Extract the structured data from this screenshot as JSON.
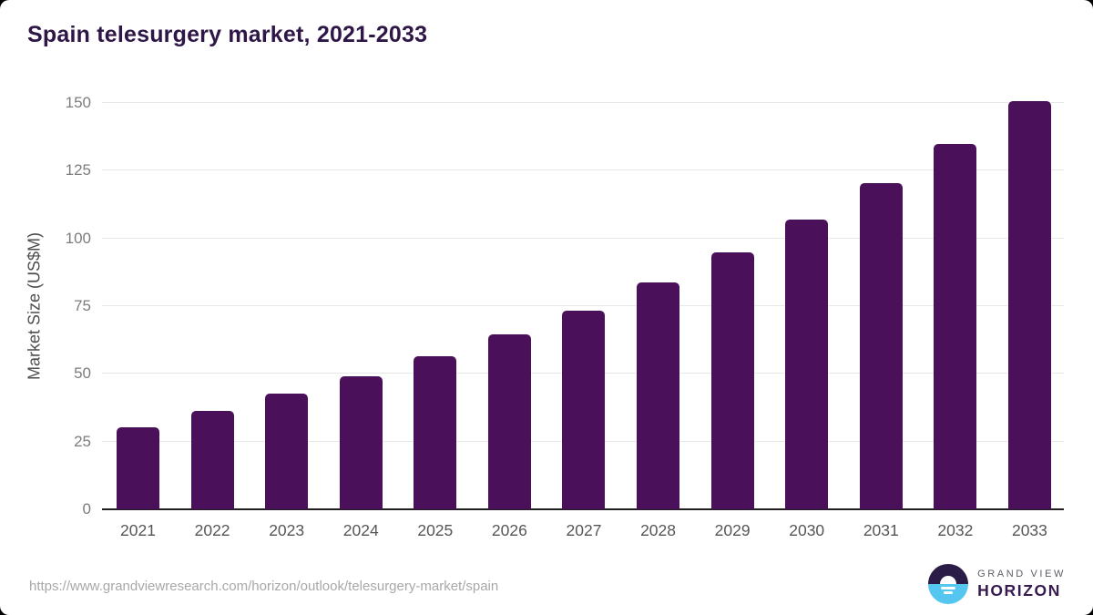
{
  "chart_data": {
    "type": "bar",
    "title": "Spain telesurgery market, 2021-2033",
    "categories": [
      "2021",
      "2022",
      "2023",
      "2024",
      "2025",
      "2026",
      "2027",
      "2028",
      "2029",
      "2030",
      "2031",
      "2032",
      "2033"
    ],
    "values": [
      30.3,
      36.3,
      42.7,
      49.1,
      56.5,
      64.7,
      73.4,
      83.8,
      94.8,
      107.1,
      120.3,
      134.8,
      150.7
    ],
    "xlabel": "",
    "ylabel": "Market Size (US$M)",
    "ylim": [
      0,
      150
    ],
    "yticks": [
      0,
      25,
      50,
      75,
      100,
      125,
      150
    ],
    "grid": true,
    "legend": false,
    "bar_color": "#4a1059"
  },
  "footer": {
    "source_url": "https://www.grandviewresearch.com/horizon/outlook/telesurgery-market/spain",
    "brand_line1": "GRAND VIEW",
    "brand_line2": "HORIZON"
  },
  "colors": {
    "bar": "#4a1059",
    "title_text": "#2e1647",
    "gridline": "#e8e8e8",
    "axis_line": "#1f1f1f",
    "y_tick_label": "#7c7c7c",
    "x_tick_label": "#565656",
    "axis_title": "#4d4d4d",
    "url_text": "#a8a8a8",
    "logo_dark": "#2b1b47",
    "logo_blue": "#55c6f0",
    "brand_top_text": "#5f5c66",
    "brand_bottom_text": "#371a4e"
  }
}
